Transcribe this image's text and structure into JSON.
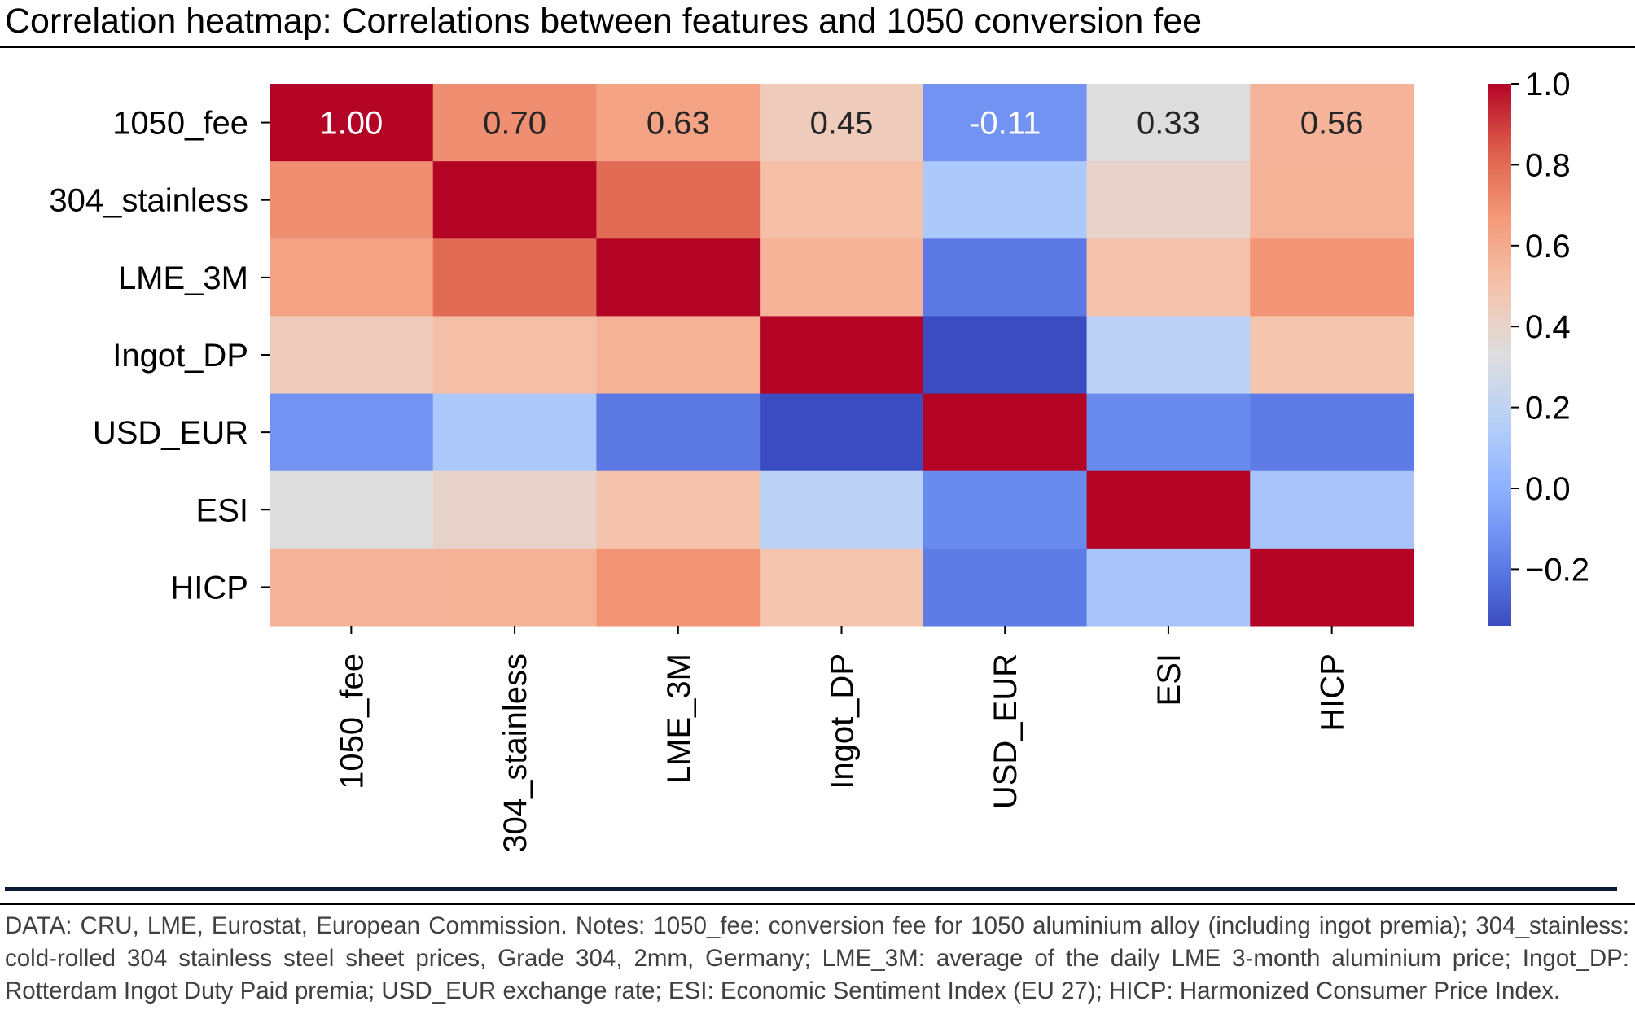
{
  "title": "Correlation heatmap: Correlations between features and 1050 conversion fee",
  "footer": "DATA: CRU, LME, Eurostat, European Commission.  Notes: 1050_fee: conversion fee for 1050 aluminium alloy (including ingot premia); 304_stainless: cold-rolled 304 stainless steel sheet prices, Grade 304, 2mm, Germany; LME_3M: average of the daily LME 3-month aluminium price; Ingot_DP: Rotterdam Ingot Duty Paid premia; USD_EUR exchange rate; ESI: Economic Sentiment Index (EU 27); HICP: Harmonized Consumer Price Index.",
  "chart_data": {
    "type": "heatmap",
    "title": "Correlation heatmap: Correlations between features and 1050 conversion fee",
    "colormap": "coolwarm",
    "vmin": -0.34,
    "vmax": 1.0,
    "row_labels": [
      "1050_fee",
      "304_stainless",
      "LME_3M",
      "Ingot_DP",
      "USD_EUR",
      "ESI",
      "HICP"
    ],
    "col_labels": [
      "1050_fee",
      "304_stainless",
      "LME_3M",
      "Ingot_DP",
      "USD_EUR",
      "ESI",
      "HICP"
    ],
    "values": [
      [
        1.0,
        0.7,
        0.63,
        0.45,
        -0.11,
        0.33,
        0.56
      ],
      [
        0.7,
        1.0,
        0.8,
        0.52,
        0.12,
        0.4,
        0.57
      ],
      [
        0.63,
        0.8,
        1.0,
        0.57,
        -0.2,
        0.5,
        0.68
      ],
      [
        0.45,
        0.52,
        0.57,
        1.0,
        -0.34,
        0.18,
        0.49
      ],
      [
        -0.11,
        0.12,
        -0.2,
        -0.34,
        1.0,
        -0.14,
        -0.19
      ],
      [
        0.33,
        0.4,
        0.5,
        0.18,
        -0.14,
        1.0,
        0.1
      ],
      [
        0.56,
        0.57,
        0.68,
        0.49,
        -0.19,
        0.1,
        1.0
      ]
    ],
    "annotated_rows": [
      0
    ],
    "annotations": [
      "1.00",
      "0.70",
      "0.63",
      "0.45",
      "-0.11",
      "0.33",
      "0.56"
    ],
    "colorbar": {
      "ticks": [
        1.0,
        0.8,
        0.6,
        0.4,
        0.2,
        0.0,
        -0.2
      ],
      "tick_labels": [
        "1.0",
        "0.8",
        "0.6",
        "0.4",
        "0.2",
        "0.0",
        "−0.2"
      ],
      "placement": "right"
    },
    "xlabel": "",
    "ylabel": ""
  }
}
